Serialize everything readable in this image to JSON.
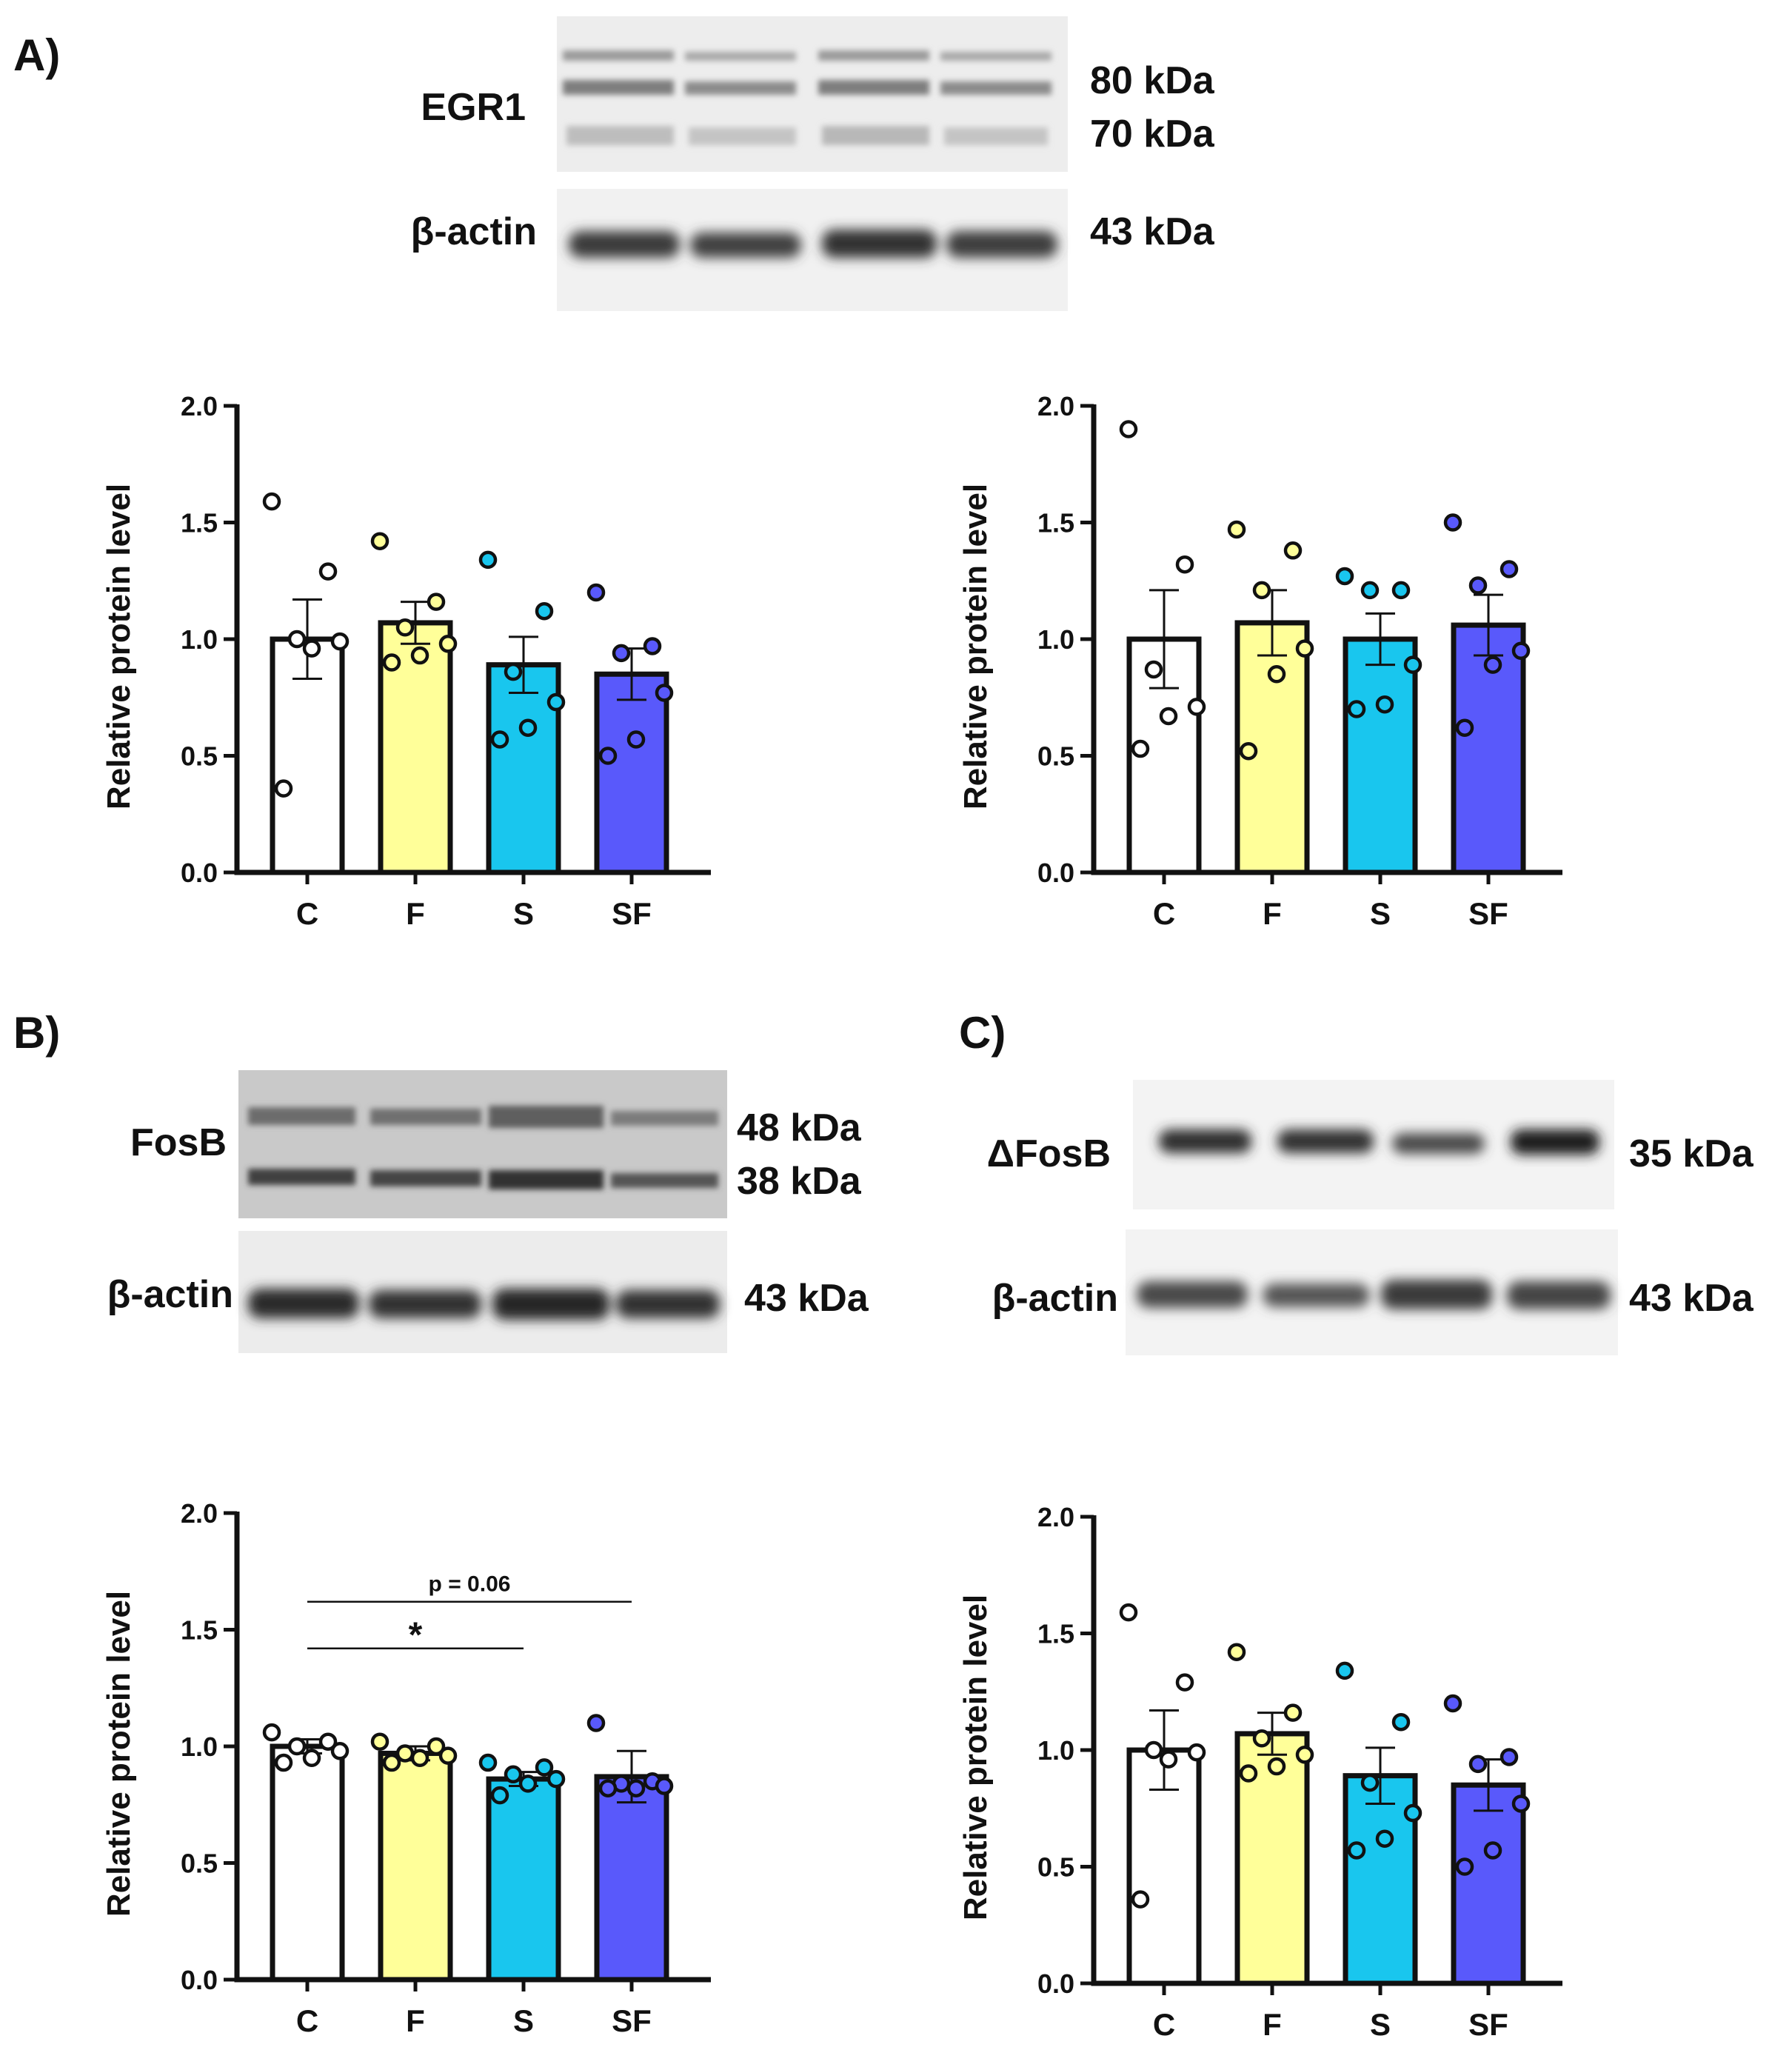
{
  "panels": [
    {
      "label": "A)"
    },
    {
      "label": "B)"
    },
    {
      "label": "C)"
    }
  ],
  "blots": [
    {
      "protein": "EGR1",
      "kda": [
        "80 kDa",
        "70 kDa"
      ],
      "control": "β-actin",
      "control_kda": "43 kDa"
    },
    {
      "protein": "FosB",
      "kda": [
        "48 kDa",
        "38 kDa"
      ],
      "control": "β-actin",
      "control_kda": "43 kDa"
    },
    {
      "protein": "ΔFosB",
      "kda": [
        "35 kDa"
      ],
      "control": "β-actin",
      "control_kda": "43 kDa"
    }
  ],
  "colors": {
    "C": "#ffffff",
    "F": "#ffff99",
    "S": "#19c6ee",
    "SF": "#5959fb"
  },
  "chart_data": [
    {
      "type": "bar",
      "ylabel": "Relative protein level",
      "ylim": [
        0,
        2.0
      ],
      "yticks": [
        "0.0",
        "0.5",
        "1.0",
        "1.5",
        "2.0"
      ],
      "categories": [
        "C",
        "F",
        "S",
        "SF"
      ],
      "values": [
        1.0,
        1.07,
        0.89,
        0.85
      ],
      "sem": [
        0.17,
        0.09,
        0.12,
        0.11
      ],
      "points": [
        [
          1.59,
          1.29,
          1.0,
          0.99,
          0.96,
          0.36
        ],
        [
          1.42,
          1.16,
          1.05,
          0.98,
          0.93,
          0.9
        ],
        [
          1.34,
          1.12,
          0.86,
          0.73,
          0.62,
          0.57
        ],
        [
          1.2,
          0.97,
          0.94,
          0.77,
          0.57,
          0.5
        ]
      ]
    },
    {
      "type": "bar",
      "ylabel": "Relative protein level",
      "ylim": [
        0,
        2.0
      ],
      "yticks": [
        "0.0",
        "0.5",
        "1.0",
        "1.5",
        "2.0"
      ],
      "categories": [
        "C",
        "F",
        "S",
        "SF"
      ],
      "values": [
        1.0,
        1.07,
        1.0,
        1.06
      ],
      "sem": [
        0.21,
        0.14,
        0.11,
        0.13
      ],
      "points": [
        [
          1.9,
          1.32,
          0.87,
          0.71,
          0.67,
          0.53
        ],
        [
          1.47,
          1.38,
          1.21,
          0.96,
          0.85,
          0.52
        ],
        [
          1.27,
          1.21,
          1.21,
          0.89,
          0.72,
          0.7
        ],
        [
          1.5,
          1.3,
          1.23,
          0.95,
          0.89,
          0.62
        ]
      ]
    },
    {
      "type": "bar",
      "ylabel": "Relative protein level",
      "ylim": [
        0,
        2.0
      ],
      "yticks": [
        "0.0",
        "0.5",
        "1.0",
        "1.5",
        "2.0"
      ],
      "categories": [
        "C",
        "F",
        "S",
        "SF"
      ],
      "values": [
        1.0,
        0.97,
        0.86,
        0.87
      ],
      "sem": [
        0.03,
        0.03,
        0.03,
        0.11
      ],
      "points": [
        [
          1.06,
          1.02,
          1.0,
          0.98,
          0.95,
          0.93
        ],
        [
          1.02,
          1.0,
          0.97,
          0.96,
          0.95,
          0.93
        ],
        [
          0.93,
          0.91,
          0.88,
          0.86,
          0.84,
          0.79
        ],
        [
          1.1,
          0.85,
          0.84,
          0.83,
          0.82,
          0.82
        ]
      ],
      "annotations": [
        {
          "from": "C",
          "to": "SF",
          "y": 1.62,
          "text": "p = 0.06"
        },
        {
          "from": "C",
          "to": "S",
          "y": 1.42,
          "text": "*"
        }
      ]
    },
    {
      "type": "bar",
      "ylabel": "Relative protein level",
      "ylim": [
        0,
        2.0
      ],
      "yticks": [
        "0.0",
        "0.5",
        "1.0",
        "1.5",
        "2.0"
      ],
      "categories": [
        "C",
        "F",
        "S",
        "SF"
      ],
      "values": [
        1.0,
        1.07,
        0.89,
        0.85
      ],
      "sem": [
        0.17,
        0.09,
        0.12,
        0.11
      ],
      "points": [
        [
          1.59,
          1.29,
          1.0,
          0.99,
          0.96,
          0.36
        ],
        [
          1.42,
          1.16,
          1.05,
          0.98,
          0.93,
          0.9
        ],
        [
          1.34,
          1.12,
          0.86,
          0.73,
          0.62,
          0.57
        ],
        [
          1.2,
          0.97,
          0.94,
          0.77,
          0.57,
          0.5
        ]
      ]
    }
  ]
}
